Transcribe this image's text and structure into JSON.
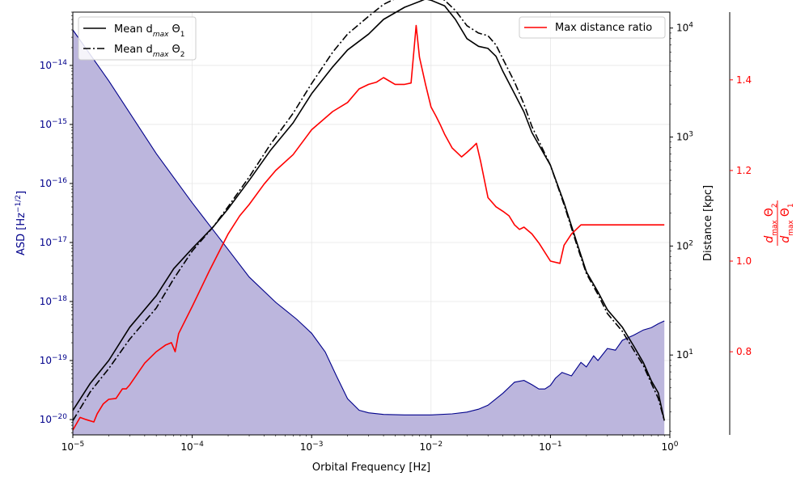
{
  "chart_data": {
    "type": "line",
    "xlabel": "Orbital Frequency [Hz]",
    "x_scale": "log",
    "xlim": [
      1e-05,
      1
    ],
    "x_ticks": [
      {
        "label": "10",
        "exp": "−5",
        "value": 1e-05
      },
      {
        "label": "10",
        "exp": "−4",
        "value": 0.0001
      },
      {
        "label": "10",
        "exp": "−3",
        "value": 0.001
      },
      {
        "label": "10",
        "exp": "−2",
        "value": 0.01
      },
      {
        "label": "10",
        "exp": "−1",
        "value": 0.1
      },
      {
        "label": "10",
        "exp": "0",
        "value": 1
      }
    ],
    "left_axis": {
      "label": "ASD [Hz",
      "label_sup": "−1/2",
      "label_end": "]",
      "scale": "log",
      "ylim": [
        5.5e-21,
        8e-14
      ],
      "color": "#00008b",
      "ticks": [
        {
          "label": "10",
          "exp": "−20",
          "value": 1e-20
        },
        {
          "label": "10",
          "exp": "−19",
          "value": 1e-19
        },
        {
          "label": "10",
          "exp": "−18",
          "value": 1e-18
        },
        {
          "label": "10",
          "exp": "−17",
          "value": 1e-17
        },
        {
          "label": "10",
          "exp": "−16",
          "value": 1e-16
        },
        {
          "label": "10",
          "exp": "−15",
          "value": 1e-15
        },
        {
          "label": "10",
          "exp": "−14",
          "value": 1e-14
        }
      ]
    },
    "right_axis_distance": {
      "label": "Distance [kpc]",
      "scale": "log",
      "ylim": [
        1.85,
        14000
      ],
      "ticks": [
        {
          "label": "10",
          "exp": "1",
          "value": 10
        },
        {
          "label": "10",
          "exp": "2",
          "value": 100
        },
        {
          "label": "10",
          "exp": "3",
          "value": 1000
        },
        {
          "label": "10",
          "exp": "4",
          "value": 10000
        }
      ]
    },
    "right_axis_ratio": {
      "label_num": "d",
      "label_num_sub": "max",
      "label_num_theta": "Θ",
      "label_num_theta_sub": "2",
      "label_den": "d",
      "label_den_sub": "max",
      "label_den_theta": "Θ",
      "label_den_theta_sub": "1",
      "scale": "linear",
      "ylim": [
        0.6165,
        1.5495
      ],
      "color": "#ff0000",
      "ticks": [
        0.8,
        1.0,
        1.2,
        1.4
      ]
    },
    "grid": true,
    "legend_left": {
      "placement": "top-left",
      "entries": [
        {
          "text": "Mean d",
          "sub": "max",
          "tail": " Θ",
          "tail_sub": "1",
          "style": "solid"
        },
        {
          "text": "Mean d",
          "sub": "max",
          "tail": " Θ",
          "tail_sub": "2",
          "style": "dashdot"
        }
      ]
    },
    "legend_right": {
      "placement": "top-right",
      "entries": [
        {
          "text": "Max distance ratio",
          "color": "#ff0000"
        }
      ]
    },
    "series": [
      {
        "id": "asd",
        "axis": "left",
        "style": "filled",
        "line_color": "#00008b",
        "fill_color": "#bcb6dd",
        "x": [
          1e-05,
          2e-05,
          5e-05,
          0.0001,
          0.0002,
          0.0003,
          0.0005,
          0.00075,
          0.001,
          0.0013,
          0.0016,
          0.002,
          0.0025,
          0.003,
          0.004,
          0.006,
          0.01,
          0.015,
          0.02,
          0.025,
          0.03,
          0.04,
          0.05,
          0.06,
          0.07,
          0.08,
          0.09,
          0.1,
          0.11,
          0.125,
          0.15,
          0.18,
          0.2,
          0.23,
          0.25,
          0.3,
          0.35,
          0.4,
          0.5,
          0.6,
          0.7,
          0.8,
          0.9
        ],
        "y": [
          4e-14,
          5.5e-15,
          3.2e-16,
          4.7e-17,
          7.6e-18,
          2.6e-18,
          9.7e-19,
          5e-19,
          2.9e-19,
          1.4e-19,
          5.7e-20,
          2.25e-20,
          1.44e-20,
          1.3e-20,
          1.22e-20,
          1.2e-20,
          1.2e-20,
          1.25e-20,
          1.34e-20,
          1.5e-20,
          1.75e-20,
          2.8e-20,
          4.3e-20,
          4.6e-20,
          3.9e-20,
          3.3e-20,
          3.3e-20,
          3.8e-20,
          5e-20,
          6.3e-20,
          5.5e-20,
          9.3e-20,
          7.8e-20,
          1.2e-19,
          1e-19,
          1.6e-19,
          1.5e-19,
          2.2e-19,
          2.7e-19,
          3.3e-19,
          3.6e-19,
          4.2e-19,
          4.7e-19
        ]
      },
      {
        "id": "theta1",
        "axis": "distance",
        "style": "solid",
        "color": "#000000",
        "x": [
          1e-05,
          1.4e-05,
          2e-05,
          3e-05,
          5e-05,
          7e-05,
          0.0001,
          0.00015,
          0.0002,
          0.0003,
          0.00045,
          0.0007,
          0.001,
          0.0015,
          0.002,
          0.003,
          0.004,
          0.006,
          0.008,
          0.009,
          0.01,
          0.013,
          0.016,
          0.02,
          0.025,
          0.03,
          0.035,
          0.04,
          0.05,
          0.06,
          0.07,
          0.1,
          0.13,
          0.17,
          0.2,
          0.25,
          0.3,
          0.4,
          0.5,
          0.6,
          0.7,
          0.8,
          0.9
        ],
        "y": [
          3.1,
          5.5,
          8.9,
          18,
          35,
          62,
          95,
          150,
          220,
          400,
          750,
          1350,
          2500,
          4400,
          6300,
          8800,
          12000,
          15500,
          17500,
          18500,
          18000,
          16000,
          12000,
          8000,
          6800,
          6500,
          5500,
          4000,
          2500,
          1700,
          1100,
          550,
          250,
          100,
          58,
          38,
          26,
          18,
          12,
          8.5,
          5.8,
          4.5,
          2.5
        ]
      },
      {
        "id": "theta2",
        "axis": "distance",
        "style": "dashdot",
        "color": "#000000",
        "x": [
          1e-05,
          1.4e-05,
          2e-05,
          3e-05,
          5e-05,
          7e-05,
          0.0001,
          0.00015,
          0.0002,
          0.0003,
          0.00045,
          0.0007,
          0.001,
          0.0015,
          0.002,
          0.003,
          0.004,
          0.006,
          0.008,
          0.009,
          0.01,
          0.013,
          0.016,
          0.02,
          0.025,
          0.03,
          0.035,
          0.04,
          0.05,
          0.06,
          0.07,
          0.1,
          0.13,
          0.17,
          0.2,
          0.25,
          0.3,
          0.4,
          0.5,
          0.6,
          0.7,
          0.8,
          0.9
        ],
        "y": [
          2.5,
          4.6,
          7.5,
          14,
          27,
          50,
          90,
          150,
          230,
          430,
          850,
          1650,
          3100,
          6000,
          8800,
          12800,
          16500,
          20500,
          22500,
          22000,
          21500,
          18000,
          14500,
          10500,
          9000,
          8500,
          7000,
          5200,
          3200,
          2000,
          1250,
          550,
          240,
          95,
          56,
          36,
          24,
          16.5,
          11,
          8,
          5.5,
          4,
          2.5
        ]
      },
      {
        "id": "ratio",
        "axis": "ratio",
        "style": "solid",
        "color": "#ff0000",
        "x": [
          1e-05,
          1.15e-05,
          1.3e-05,
          1.5e-05,
          1.6e-05,
          1.8e-05,
          2e-05,
          2.3e-05,
          2.6e-05,
          2.8e-05,
          3e-05,
          4e-05,
          5e-05,
          6e-05,
          6.7e-05,
          7.2e-05,
          7.7e-05,
          0.0001,
          0.00014,
          0.0002,
          0.00025,
          0.0003,
          0.0004,
          0.0005,
          0.0007,
          0.001,
          0.0015,
          0.002,
          0.0025,
          0.003,
          0.0035,
          0.004,
          0.005,
          0.006,
          0.0068,
          0.0075,
          0.008,
          0.009,
          0.01,
          0.011,
          0.012,
          0.013,
          0.015,
          0.018,
          0.02,
          0.022,
          0.024,
          0.026,
          0.03,
          0.035,
          0.04,
          0.045,
          0.05,
          0.055,
          0.06,
          0.07,
          0.08,
          0.1,
          0.12,
          0.13,
          0.15,
          0.18,
          0.2,
          0.25,
          0.3,
          0.4,
          0.5,
          0.6,
          0.7,
          0.8,
          0.9
        ],
        "y": [
          0.627,
          0.655,
          0.65,
          0.645,
          0.663,
          0.685,
          0.695,
          0.697,
          0.718,
          0.718,
          0.727,
          0.775,
          0.8,
          0.815,
          0.82,
          0.8,
          0.84,
          0.9,
          0.98,
          1.06,
          1.1,
          1.125,
          1.17,
          1.2,
          1.235,
          1.29,
          1.33,
          1.35,
          1.38,
          1.39,
          1.395,
          1.405,
          1.39,
          1.39,
          1.393,
          1.52,
          1.45,
          1.39,
          1.34,
          1.32,
          1.3,
          1.28,
          1.25,
          1.23,
          1.24,
          1.25,
          1.26,
          1.22,
          1.14,
          1.12,
          1.11,
          1.1,
          1.08,
          1.07,
          1.075,
          1.06,
          1.04,
          1.0,
          0.995,
          1.035,
          1.06,
          1.08,
          1.08,
          1.08,
          1.08,
          1.08,
          1.08,
          1.08,
          1.08,
          1.08,
          1.08
        ]
      }
    ]
  }
}
